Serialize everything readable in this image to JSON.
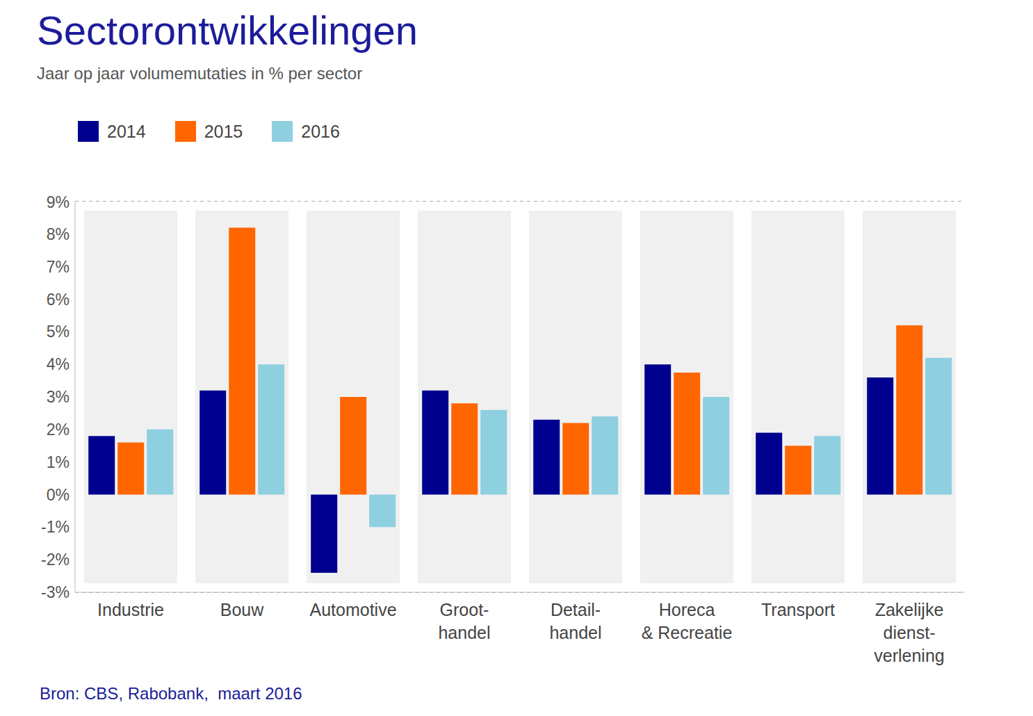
{
  "chart_data": {
    "type": "bar",
    "title": "Sectorontwikkelingen",
    "subtitle": "Jaar op jaar volumemutaties in % per sector",
    "source": "Bron: CBS, Rabobank,  maart 2016",
    "categories": [
      "Industrie",
      "Bouw",
      "Automotive",
      "Groot-\nhandel",
      "Detail-\nhandel",
      "Horeca\n& Recreatie",
      "Transport",
      "Zakelijke\ndienst-\nverlening"
    ],
    "series": [
      {
        "name": "2014",
        "color": "#00008f",
        "values": [
          1.8,
          3.2,
          -2.4,
          3.2,
          2.3,
          4.0,
          1.9,
          3.6
        ]
      },
      {
        "name": "2015",
        "color": "#ff6600",
        "values": [
          1.6,
          8.2,
          3.0,
          2.8,
          2.2,
          3.75,
          1.5,
          5.2
        ]
      },
      {
        "name": "2016",
        "color": "#8ecfe0",
        "values": [
          2.0,
          4.0,
          -1.0,
          2.6,
          2.4,
          3.0,
          1.8,
          4.2
        ]
      }
    ],
    "ylim": [
      -3,
      9
    ],
    "yticks": [
      {
        "value": -3,
        "label": "-3%"
      },
      {
        "value": -2,
        "label": "-2%"
      },
      {
        "value": -1,
        "label": "-1%"
      },
      {
        "value": 0,
        "label": "0%"
      },
      {
        "value": 1,
        "label": "1%"
      },
      {
        "value": 2,
        "label": "2%"
      },
      {
        "value": 3,
        "label": "3%"
      },
      {
        "value": 4,
        "label": "4%"
      },
      {
        "value": 5,
        "label": "5%"
      },
      {
        "value": 6,
        "label": "6%"
      },
      {
        "value": 7,
        "label": "7%"
      },
      {
        "value": 8,
        "label": "8%"
      },
      {
        "value": 9,
        "label": "9%"
      }
    ],
    "grid": true,
    "legend": "top-left"
  }
}
